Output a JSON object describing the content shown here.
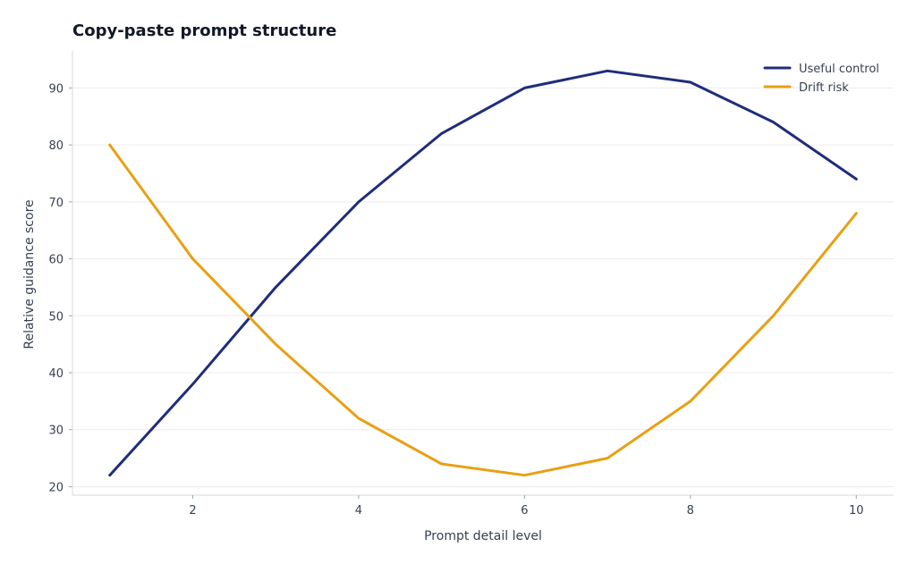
{
  "chart_data": {
    "type": "line",
    "title": "Copy-paste prompt structure",
    "xlabel": "Prompt detail level",
    "ylabel": "Relative guidance score",
    "x": [
      1,
      2,
      3,
      4,
      5,
      6,
      7,
      8,
      9,
      10
    ],
    "series": [
      {
        "name": "Useful control",
        "color": "#1f2d7a",
        "values": [
          22,
          38,
          55,
          70,
          82,
          90,
          93,
          91,
          84,
          74
        ]
      },
      {
        "name": "Drift risk",
        "color": "#e8a013",
        "values": [
          80,
          60,
          45,
          32,
          24,
          22,
          25,
          35,
          50,
          68
        ]
      }
    ],
    "xlim": [
      0.55,
      10.45
    ],
    "ylim": [
      18.5,
      96.5
    ],
    "xticks": [
      2,
      4,
      6,
      8,
      10
    ],
    "yticks": [
      20,
      30,
      40,
      50,
      60,
      70,
      80,
      90
    ],
    "grid": "horizontal",
    "legend": "top-right"
  }
}
